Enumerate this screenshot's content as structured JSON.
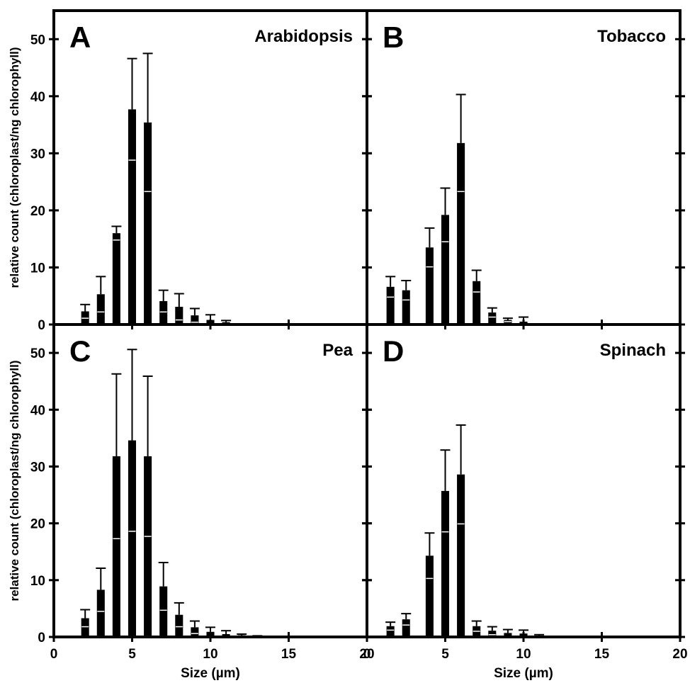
{
  "chart_data": [
    {
      "type": "bar",
      "panel_label": "A",
      "title": "Arabidopsis",
      "xlabel": "",
      "ylabel": "relative count (chloroplast/ng chlorophyll)",
      "xlim": [
        0,
        20
      ],
      "ylim": [
        0,
        55
      ],
      "xticks": [
        0,
        5,
        10,
        15,
        20
      ],
      "yticks": [
        0,
        10,
        20,
        30,
        40,
        50
      ],
      "x": [
        2,
        3,
        4,
        5,
        6,
        7,
        8,
        9,
        10,
        11
      ],
      "values": [
        2.3,
        5.3,
        16.0,
        37.7,
        35.4,
        4.1,
        3.1,
        1.6,
        0.8,
        0.4
      ],
      "errors": [
        1.2,
        3.1,
        1.2,
        8.9,
        12.1,
        1.9,
        2.3,
        1.2,
        0.9,
        0.3
      ]
    },
    {
      "type": "bar",
      "panel_label": "B",
      "title": "Tobacco",
      "xlabel": "",
      "ylabel": "",
      "xlim": [
        0,
        20
      ],
      "ylim": [
        0,
        55
      ],
      "xticks": [
        0,
        5,
        10,
        15,
        20
      ],
      "yticks": [
        0,
        10,
        20,
        30,
        40,
        50
      ],
      "x": [
        1.5,
        2.5,
        4,
        5,
        6,
        7,
        8,
        9,
        10
      ],
      "values": [
        6.6,
        6.0,
        13.5,
        19.2,
        31.8,
        7.6,
        2.1,
        0.8,
        0.5
      ],
      "errors": [
        1.8,
        1.7,
        3.4,
        4.7,
        8.5,
        1.9,
        0.8,
        0.3,
        0.8
      ]
    },
    {
      "type": "bar",
      "panel_label": "C",
      "title": "Pea",
      "xlabel": "Size (µm)",
      "ylabel": "relative count (chloroplast/ng chlorophyll)",
      "xlim": [
        0,
        20
      ],
      "ylim": [
        0,
        55
      ],
      "xticks": [
        0,
        5,
        10,
        15,
        20
      ],
      "yticks": [
        0,
        10,
        20,
        30,
        40,
        50
      ],
      "x": [
        2,
        3,
        4,
        5,
        6,
        7,
        8,
        9,
        10,
        11,
        12,
        13
      ],
      "values": [
        3.3,
        8.3,
        31.8,
        34.6,
        31.8,
        8.9,
        3.9,
        1.7,
        0.9,
        0.5,
        0.3,
        0.1
      ],
      "errors": [
        1.5,
        3.8,
        14.5,
        16.0,
        14.1,
        4.2,
        2.1,
        1.1,
        0.8,
        0.6,
        0.2,
        0.1
      ]
    },
    {
      "type": "bar",
      "panel_label": "D",
      "title": "Spinach",
      "xlabel": "Size (µm)",
      "ylabel": "",
      "xlim": [
        0,
        20
      ],
      "ylim": [
        0,
        55
      ],
      "xticks": [
        0,
        5,
        10,
        15,
        20
      ],
      "yticks": [
        0,
        10,
        20,
        30,
        40,
        50
      ],
      "x": [
        1.5,
        2.5,
        4,
        5,
        6,
        7,
        8,
        9,
        10,
        11
      ],
      "values": [
        1.9,
        3.1,
        14.3,
        25.7,
        28.6,
        1.9,
        1.1,
        0.7,
        0.6,
        0.2
      ],
      "errors": [
        0.7,
        1.0,
        4.0,
        7.2,
        8.7,
        0.9,
        0.7,
        0.6,
        0.6,
        0.2
      ]
    }
  ]
}
